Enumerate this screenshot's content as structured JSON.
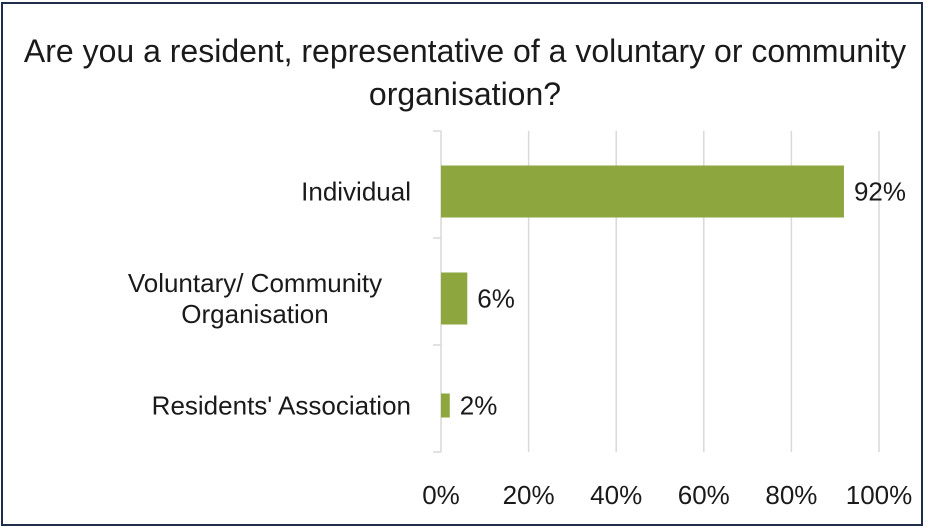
{
  "chart_data": {
    "type": "bar",
    "orientation": "horizontal",
    "title": "Are you a resident, representative of a voluntary or community organisation?",
    "categories": [
      [
        "Individual"
      ],
      [
        "Voluntary/ Community",
        "Organisation"
      ],
      [
        "Residents' Association"
      ]
    ],
    "values": [
      92,
      6,
      2
    ],
    "data_labels": [
      "92%",
      "6%",
      "2%"
    ],
    "xlim": [
      0,
      100
    ],
    "xticks": [
      0,
      20,
      40,
      60,
      80,
      100
    ],
    "xtick_labels": [
      "0%",
      "20%",
      "40%",
      "60%",
      "80%",
      "100%"
    ],
    "xlabel": "",
    "ylabel": "",
    "grid": true,
    "legend": "none",
    "bar_color": "#8ea63e",
    "grid_color": "#d9d9d9"
  }
}
